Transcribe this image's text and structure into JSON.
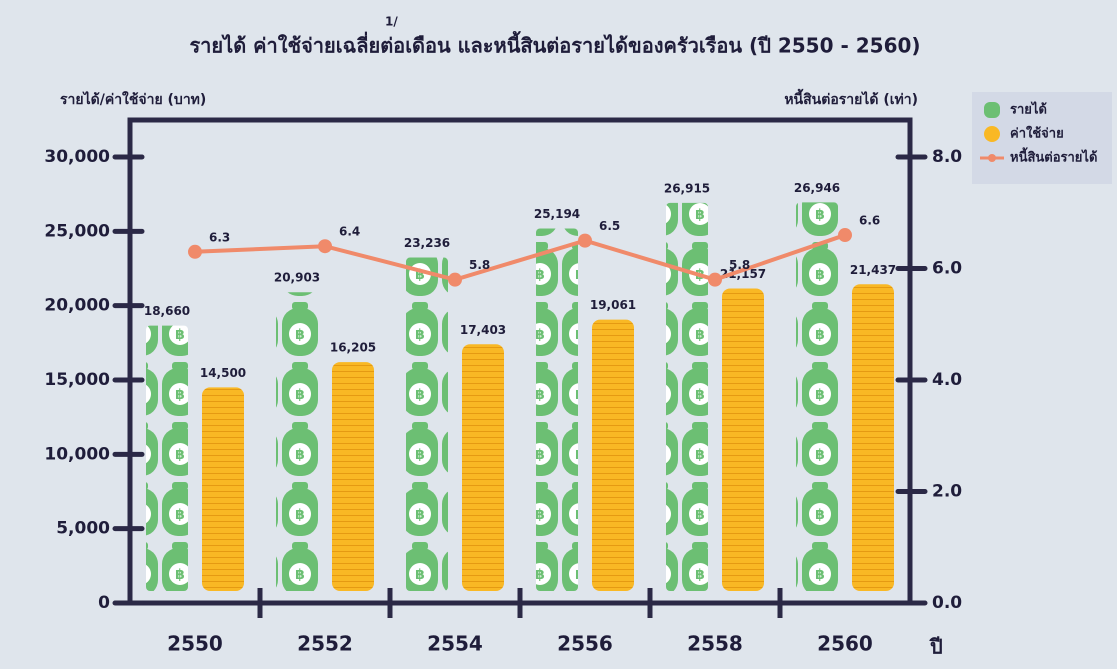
{
  "chart_data": {
    "type": "bar-line",
    "title": "รายได้ ค่าใช้จ่ายเฉลี่ยต่อเดือน และหนี้สินต่อรายได้ของครัวเรือน (ปี 2550 - 2560)",
    "title_note": "1/",
    "y_label": "รายได้/ค่าใช้จ่าย (บาท)",
    "y2_label": "หนี้สินต่อรายได้ (เท่า)",
    "x_label": "ปี",
    "categories": [
      "2550",
      "2552",
      "2554",
      "2556",
      "2558",
      "2560"
    ],
    "series": [
      {
        "name": "รายได้",
        "type": "bar",
        "color": "#6cbf73",
        "values": [
          18660,
          20903,
          23236,
          25194,
          26915,
          26946
        ],
        "value_labels": [
          "18,660",
          "20,903",
          "23,236",
          "25,194",
          "26,915",
          "26,946"
        ]
      },
      {
        "name": "ค่าใช้จ่าย",
        "type": "bar",
        "color": "#f9b824",
        "values": [
          14500,
          16205,
          17403,
          19061,
          21157,
          21437
        ],
        "value_labels": [
          "14,500",
          "16,205",
          "17,403",
          "19,061",
          "21,157",
          "21,437"
        ]
      },
      {
        "name": "หนี้สินต่อรายได้",
        "type": "line",
        "axis": "y2",
        "color": "#f08a6a",
        "values": [
          6.3,
          6.4,
          5.8,
          6.5,
          5.8,
          6.6
        ]
      }
    ],
    "ylim": [
      0,
      30000
    ],
    "yticks": [
      0,
      {
        "value": 5000,
        "label": "5,000"
      },
      {
        "value": 10000,
        "label": "10,000"
      },
      {
        "value": 15000,
        "label": "15,000"
      },
      {
        "value": 20000,
        "label": "20,000"
      },
      {
        "value": 25000,
        "label": "25,000"
      },
      {
        "value": 30000,
        "label": "30,000"
      }
    ],
    "y2lim": [
      0,
      8
    ],
    "y2ticks": [
      {
        "value": 0,
        "label": "0.0"
      },
      {
        "value": 2,
        "label": "2.0"
      },
      {
        "value": 4,
        "label": "4.0"
      },
      {
        "value": 6,
        "label": "6.0"
      },
      {
        "value": 8,
        "label": "8.0"
      }
    ],
    "legend": "top-right"
  }
}
